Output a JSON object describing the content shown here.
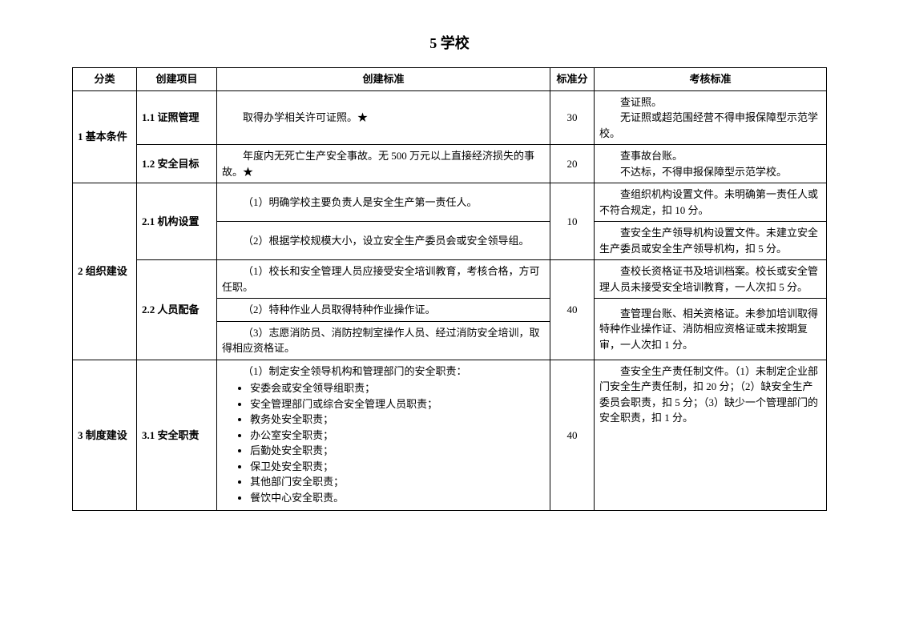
{
  "title": "5 学校",
  "columns": [
    "分类",
    "创建项目",
    "创建标准",
    "标准分",
    "考核标准"
  ],
  "sections": [
    {
      "category": "1 基本条件",
      "items": [
        {
          "name": "1.1 证照管理",
          "score": "30",
          "standards": [
            "取得办学相关许可证照。★"
          ],
          "evals": [
            "查证照。",
            "无证照或超范围经营不得申报保障型示范学校。"
          ]
        },
        {
          "name": "1.2 安全目标",
          "score": "20",
          "standards": [
            "年度内无死亡生产安全事故。无 500 万元以上直接经济损失的事故。★"
          ],
          "evals": [
            "查事故台账。",
            "不达标，不得申报保障型示范学校。"
          ]
        }
      ]
    },
    {
      "category": "2 组织建设",
      "items": [
        {
          "name": "2.1 机构设置",
          "score": "10",
          "standards": [
            "（1）明确学校主要负责人是安全生产第一责任人。",
            "（2）根据学校规模大小，设立安全生产委员会或安全领导组。"
          ],
          "evals": [
            "查组织机构设置文件。未明确第一责任人或不符合规定，扣 10 分。",
            "查安全生产领导机构设置文件。未建立安全生产委员或安全生产领导机构，扣 5 分。"
          ]
        },
        {
          "name": "2.2 人员配备",
          "score": "40",
          "standards": [
            "（1）校长和安全管理人员应接受安全培训教育，考核合格，方可任职。",
            "（2）特种作业人员取得特种作业操作证。",
            "（3）志愿消防员、消防控制室操作人员、经过消防安全培训，取得相应资格证。"
          ],
          "evals": [
            "查校长资格证书及培训档案。校长或安全管理人员未接受安全培训教育，一人次扣 5 分。",
            "查管理台账、相关资格证。未参加培训取得特种作业操作证、消防相应资格证或未按期复审，一人次扣 1 分。"
          ]
        }
      ]
    },
    {
      "category": "3 制度建设",
      "items": [
        {
          "name": "3.1 安全职责",
          "score": "40",
          "standards_lead": "（1）制定安全领导机构和管理部门的安全职责：",
          "standards_bullets": [
            "安委会或安全领导组职责；",
            "安全管理部门或综合安全管理人员职责；",
            "教务处安全职责；",
            "办公室安全职责；",
            "后勤处安全职责；",
            "保卫处安全职责；",
            "其他部门安全职责；",
            "餐饮中心安全职责。"
          ],
          "evals": [
            "查安全生产责任制文件。（1）未制定企业部门安全生产责任制，扣 20 分；（2）缺安全生产委员会职责，扣 5 分；（3）缺少一个管理部门的安全职责，扣 1 分。"
          ]
        }
      ]
    }
  ]
}
